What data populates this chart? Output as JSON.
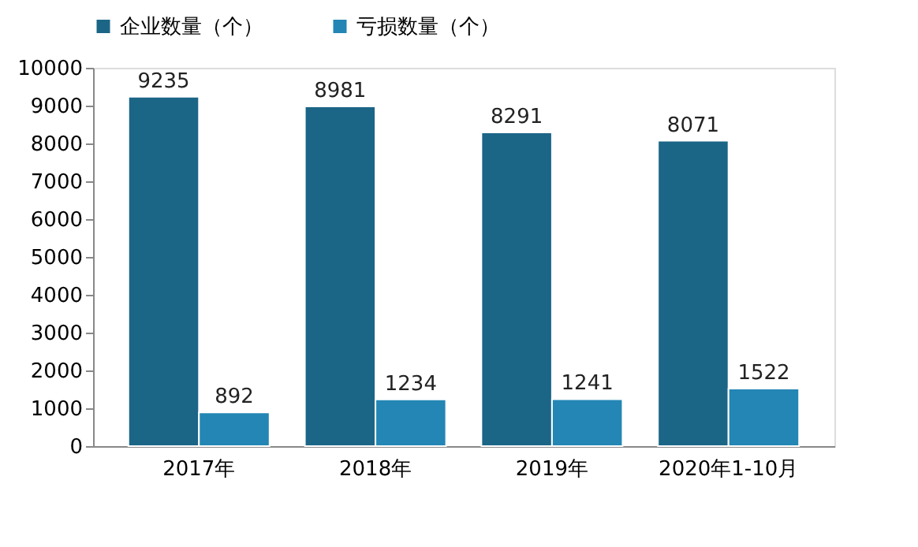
{
  "chart_data": {
    "type": "bar",
    "categories": [
      "2017年",
      "2018年",
      "2019年",
      "2020年1-10月"
    ],
    "series": [
      {
        "name": "企业数量（个）",
        "color": "#1b6587",
        "values": [
          9235,
          8981,
          8291,
          8071
        ]
      },
      {
        "name": "亏损数量（个）",
        "color": "#2386b4",
        "values": [
          892,
          1234,
          1241,
          1522
        ]
      }
    ],
    "ylim": [
      0,
      10000
    ],
    "yticks": [
      0,
      1000,
      2000,
      3000,
      4000,
      5000,
      6000,
      7000,
      8000,
      9000,
      10000
    ],
    "data_labels": true,
    "legend": "top",
    "grid": false
  }
}
